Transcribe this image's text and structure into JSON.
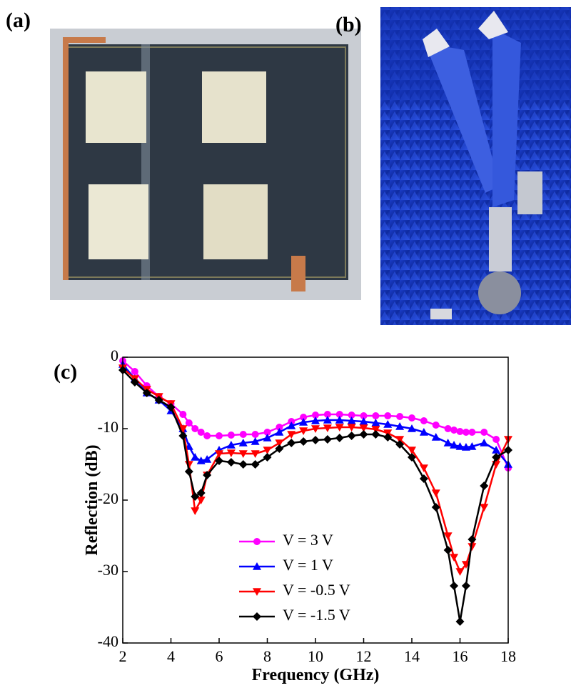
{
  "photos": [
    {
      "label": "(a)"
    },
    {
      "label": "(b)"
    }
  ],
  "chart_data": {
    "type": "line",
    "panel_label": "(c)",
    "x_label": "Frequency (GHz)",
    "y_label": "Reflection (dB)",
    "xlim": [
      2,
      18
    ],
    "xticks": [
      2,
      4,
      6,
      8,
      10,
      12,
      14,
      16,
      18
    ],
    "ylim": [
      -40,
      0
    ],
    "yticks": [
      0,
      -10,
      -20,
      -30,
      -40
    ],
    "x": [
      2,
      2.5,
      3,
      3.5,
      4,
      4.5,
      4.75,
      5,
      5.25,
      5.5,
      6,
      6.5,
      7,
      7.5,
      8,
      8.5,
      9,
      9.5,
      10,
      10.5,
      11,
      11.5,
      12,
      12.5,
      13,
      13.5,
      14,
      14.5,
      15,
      15.5,
      15.75,
      16,
      16.25,
      16.5,
      17,
      17.5,
      18
    ],
    "series": [
      {
        "name": "V = 3 V",
        "color": "#ff00ff",
        "marker": "circle",
        "values": [
          -0.5,
          -2,
          -4,
          -5.5,
          -6.5,
          -8,
          -9.2,
          -10,
          -10.5,
          -11,
          -11,
          -10.9,
          -10.8,
          -10.8,
          -10.5,
          -9.8,
          -9,
          -8.4,
          -8.1,
          -8,
          -8,
          -8.1,
          -8.2,
          -8.2,
          -8.2,
          -8.3,
          -8.5,
          -8.9,
          -9.5,
          -10,
          -10.2,
          -10.4,
          -10.5,
          -10.5,
          -10.5,
          -11.5,
          -15.5
        ]
      },
      {
        "name": "V = 1 V",
        "color": "#0000ff",
        "marker": "triangle-up",
        "values": [
          -1,
          -3,
          -5,
          -6,
          -7.5,
          -10,
          -12.5,
          -14,
          -14.5,
          -14.3,
          -13,
          -12.3,
          -12,
          -11.8,
          -11.3,
          -10.5,
          -9.6,
          -9.1,
          -8.9,
          -8.8,
          -8.8,
          -8.9,
          -9,
          -9.2,
          -9.4,
          -9.7,
          -10,
          -10.5,
          -11.2,
          -12,
          -12.3,
          -12.5,
          -12.6,
          -12.5,
          -12,
          -13,
          -15
        ]
      },
      {
        "name": "V = -0.5 V",
        "color": "#ff0000",
        "marker": "triangle-down",
        "values": [
          -1.5,
          -3,
          -4.5,
          -5.5,
          -6.5,
          -10,
          -15,
          -21.5,
          -20,
          -16.5,
          -13.5,
          -13.4,
          -13.5,
          -13.5,
          -13,
          -12,
          -10.8,
          -10.3,
          -10,
          -9.9,
          -9.8,
          -9.8,
          -9.9,
          -10.1,
          -10.6,
          -11.5,
          -13,
          -15.5,
          -19,
          -25,
          -28,
          -30,
          -29,
          -26.5,
          -21,
          -15,
          -11.5
        ]
      },
      {
        "name": "V = -1.5 V",
        "color": "#000000",
        "marker": "diamond",
        "values": [
          -1.8,
          -3.5,
          -5,
          -6,
          -7,
          -11,
          -16,
          -19.5,
          -19,
          -16.5,
          -14.5,
          -14.7,
          -15,
          -15,
          -14,
          -12.8,
          -12,
          -11.8,
          -11.6,
          -11.5,
          -11.3,
          -11,
          -10.8,
          -10.8,
          -11.2,
          -12.2,
          -14,
          -17,
          -21,
          -27,
          -32,
          -37,
          -32,
          -25.5,
          -18,
          -14,
          -13
        ]
      }
    ]
  }
}
